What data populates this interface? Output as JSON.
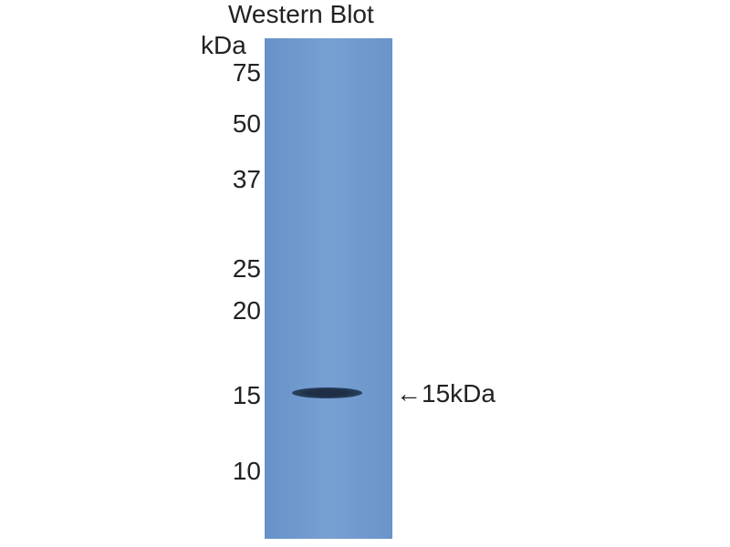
{
  "title": "Western Blot",
  "unit": "kDa",
  "markers": [
    {
      "label": "75",
      "kda": 75
    },
    {
      "label": "50",
      "kda": 50
    },
    {
      "label": "37",
      "kda": 37
    },
    {
      "label": "25",
      "kda": 25
    },
    {
      "label": "20",
      "kda": 20
    },
    {
      "label": "15",
      "kda": 15
    },
    {
      "label": "10",
      "kda": 10
    }
  ],
  "band": {
    "label": "←15kDa",
    "kda": 15
  },
  "colors": {
    "membrane": "#6f98cc",
    "band": "#1e2e44"
  }
}
